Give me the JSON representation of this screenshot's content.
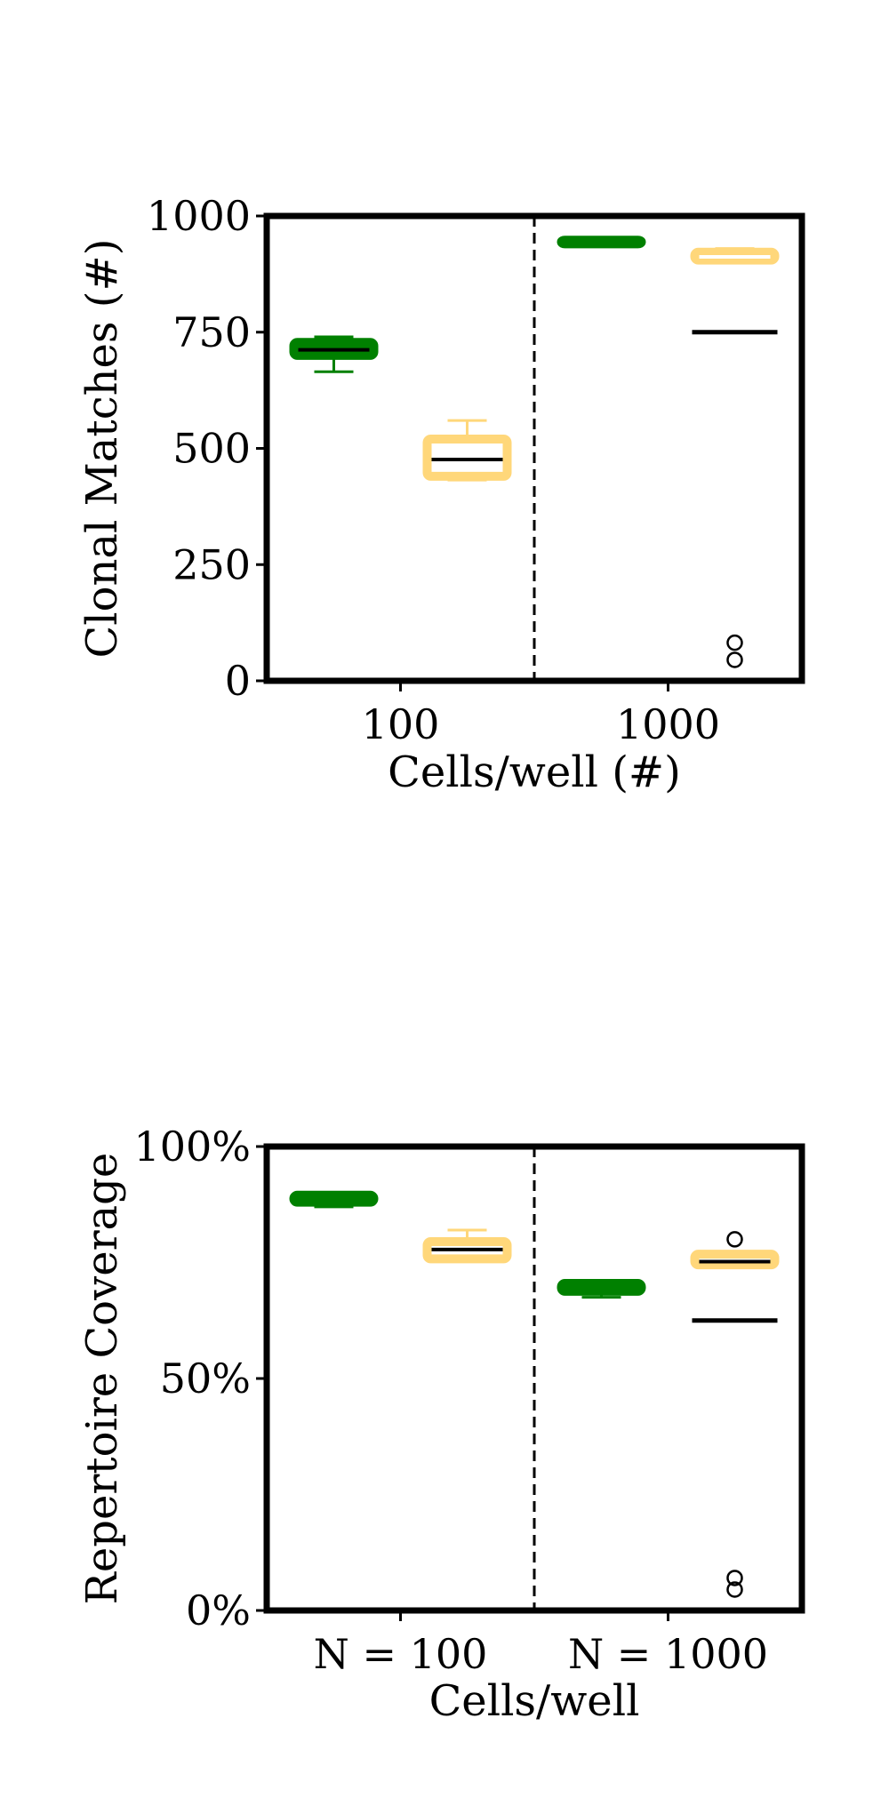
{
  "chart_data": [
    {
      "type": "box",
      "title": "",
      "xlabel": "Cells/well (#)",
      "ylabel": "Clonal Matches (#)",
      "ylim": [
        0,
        1000
      ],
      "yticks": [
        0,
        250,
        500,
        750,
        1000
      ],
      "ytick_labels": [
        "0",
        "250",
        "500",
        "750",
        "1000"
      ],
      "categories": [
        "100",
        "1000"
      ],
      "divider": "dashed vertical line between groups",
      "grid": false,
      "series": [
        {
          "color": "#008000",
          "boxes": [
            {
              "category": "100",
              "whisker_low": 665,
              "q1": 700,
              "median": 712,
              "q3": 728,
              "whisker_high": 740,
              "outliers": []
            },
            {
              "category": "1000",
              "whisker_low": 940,
              "q1": 940,
              "median": 944,
              "q3": 948,
              "whisker_high": 948,
              "outliers": []
            }
          ]
        },
        {
          "color": "#FFD77A",
          "boxes": [
            {
              "category": "100",
              "whisker_low": 432,
              "q1": 440,
              "median": 476,
              "q3": 520,
              "whisker_high": 560,
              "outliers": []
            },
            {
              "category": "1000",
              "whisker_low": 905,
              "q1": 905,
              "median": 912,
              "q3": 922,
              "whisker_high": 930,
              "outliers": [
                45,
                82
              ]
            }
          ]
        }
      ],
      "reference_lines": [
        {
          "category": "1000",
          "value": 750,
          "color": "#000000"
        }
      ]
    },
    {
      "type": "box",
      "title": "",
      "xlabel": "Cells/well",
      "ylabel": "Repertoire Coverage",
      "ylim": [
        0,
        100
      ],
      "yticks": [
        0,
        50,
        100
      ],
      "ytick_labels": [
        "0%",
        "50%",
        "100%"
      ],
      "categories": [
        "N = 100",
        "N = 1000"
      ],
      "divider": "dashed vertical line between groups",
      "grid": false,
      "series": [
        {
          "color": "#008000",
          "boxes": [
            {
              "category": "N = 100",
              "whisker_low": 87,
              "q1": 88,
              "median": 88.8,
              "q3": 89.5,
              "whisker_high": 89.5,
              "outliers": []
            },
            {
              "category": "N = 1000",
              "whisker_low": 67.5,
              "q1": 68.8,
              "median": 69.5,
              "q3": 70.5,
              "whisker_high": 70.5,
              "outliers": []
            }
          ]
        },
        {
          "color": "#FFD77A",
          "boxes": [
            {
              "category": "N = 100",
              "whisker_low": 75.5,
              "q1": 75.8,
              "median": 77.8,
              "q3": 79.5,
              "whisker_high": 82,
              "outliers": []
            },
            {
              "category": "N = 1000",
              "whisker_low": 74.5,
              "q1": 74.5,
              "median": 75.2,
              "q3": 76.8,
              "whisker_high": 76.8,
              "outliers": [
                4.5,
                7,
                80
              ]
            }
          ]
        }
      ],
      "reference_lines": [
        {
          "category": "N = 1000",
          "value": 62.5,
          "color": "#000000"
        }
      ]
    }
  ]
}
